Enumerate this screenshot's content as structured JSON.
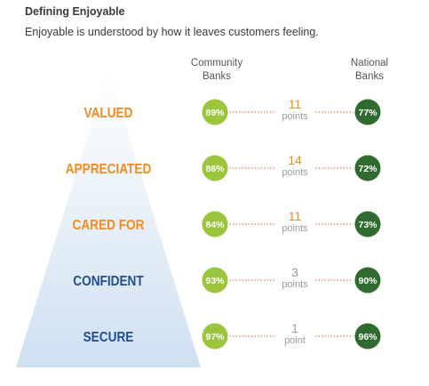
{
  "header": {
    "title": "Defining Enjoyable",
    "subtitle": "Enjoyable is understood by how it leaves customers feeling."
  },
  "columns": {
    "left": [
      "Community",
      "Banks"
    ],
    "right": [
      "National",
      "Banks"
    ]
  },
  "colors": {
    "community": "#9bc53d",
    "national": "#2f6b2f",
    "orange": "#f08c1e",
    "navy": "#1f4e8c",
    "gray": "#9a9a9a",
    "pyramid_top": "#ffffff",
    "pyramid_bottom": "#cfe0f1",
    "dots": "#e4572e"
  },
  "chart_data": {
    "type": "table",
    "title": "Defining Enjoyable",
    "subtitle": "Enjoyable is understood by how it leaves customers feeling.",
    "categories": [
      "VALUED",
      "APPRECIATED",
      "CARED FOR",
      "CONFIDENT",
      "SECURE"
    ],
    "series": [
      {
        "name": "Community Banks",
        "values": [
          "89%",
          "86%",
          "84%",
          "93%",
          "97%"
        ]
      },
      {
        "name": "National Banks",
        "values": [
          "77%",
          "72%",
          "73%",
          "90%",
          "96%"
        ]
      }
    ],
    "gap": [
      {
        "number": "11",
        "unit": "points",
        "color": "orange"
      },
      {
        "number": "14",
        "unit": "points",
        "color": "orange"
      },
      {
        "number": "11",
        "unit": "points",
        "color": "orange"
      },
      {
        "number": "3",
        "unit": "points",
        "color": "gray"
      },
      {
        "number": "1",
        "unit": "point",
        "color": "gray"
      }
    ],
    "label_colors": [
      "orange",
      "orange",
      "orange",
      "navy",
      "navy"
    ]
  }
}
